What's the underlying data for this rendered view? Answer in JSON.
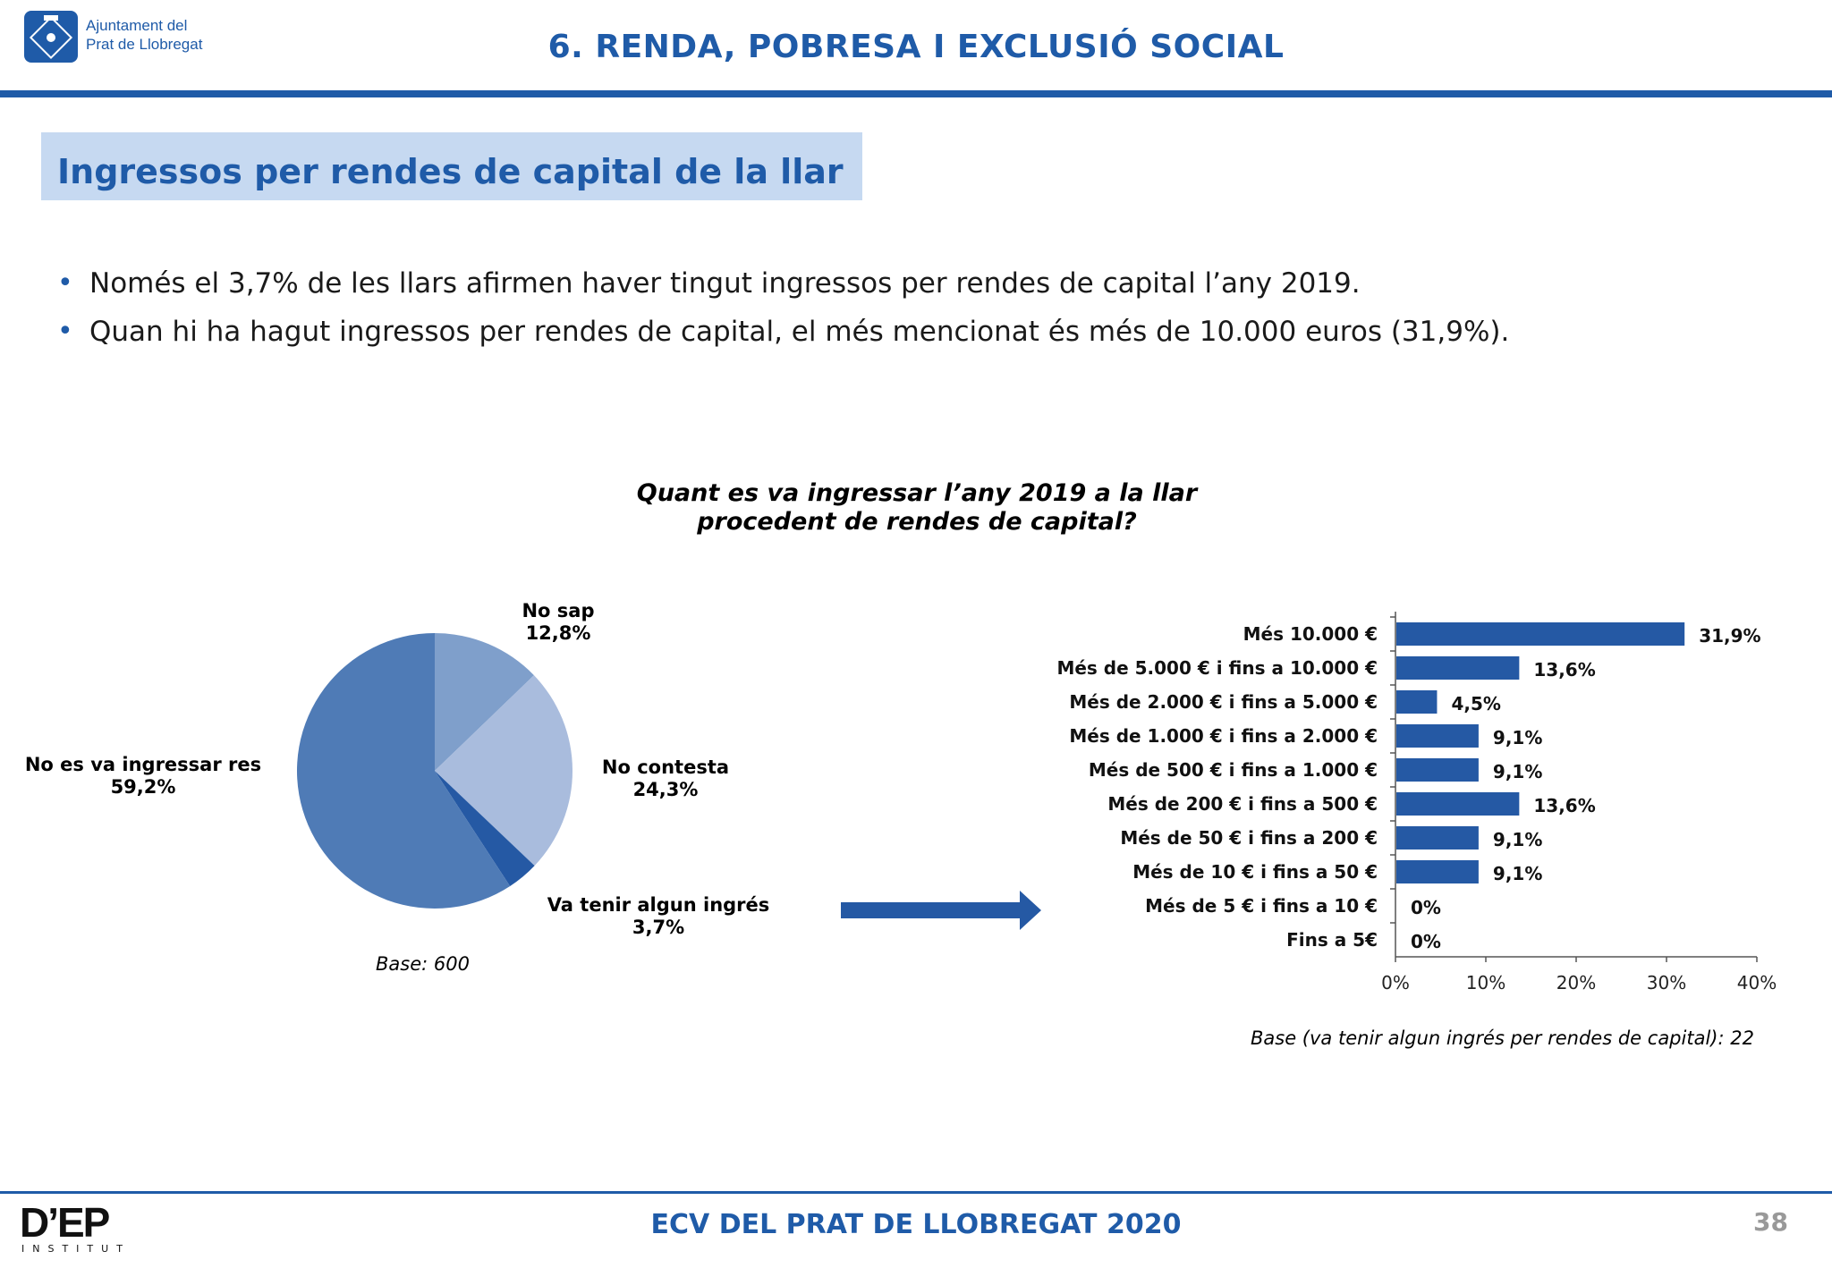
{
  "header": {
    "org_line1": "Ajuntament del",
    "org_line2": "Prat de Llobregat",
    "title": "6. RENDA, POBRESA I EXCLUSIÓ SOCIAL"
  },
  "section": {
    "title": "Ingressos per rendes de capital de la llar"
  },
  "bullets": [
    "Només el 3,7% de les llars afirmen haver tingut ingressos per rendes de capital l’any 2019.",
    "Quan hi ha hagut ingressos per rendes de capital, el més mencionat és més de 10.000 euros (31,9%)."
  ],
  "colors": {
    "brand": "#1f5ba8",
    "light_box": "#c6d9f1"
  },
  "chart_data": [
    {
      "type": "pie",
      "title": "Quant es va ingressar l’any 2019 a la llar procedent de rendes de capital?",
      "title_line1": "Quant es va ingressar l’any 2019 a la llar",
      "title_line2": "procedent de rendes de capital?",
      "slices": [
        {
          "label": "No sap",
          "value_label": "12,8%",
          "value": 12.8,
          "color": "#7f9fcb"
        },
        {
          "label": "No contesta",
          "value_label": "24,3%",
          "value": 24.3,
          "color": "#a9bcdd"
        },
        {
          "label": "Va tenir algun ingrés",
          "value_label": "3,7%",
          "value": 3.7,
          "color": "#2559a4"
        },
        {
          "label": "No es va ingressar res",
          "value_label": "59,2%",
          "value": 59.2,
          "color": "#4f7bb6"
        }
      ],
      "base_note": "Base: 600"
    },
    {
      "type": "bar",
      "orientation": "horizontal",
      "categories": [
        "Més 10.000 €",
        "Més de 5.000 € i fins a 10.000 €",
        "Més de 2.000 € i fins a 5.000 €",
        "Més de 1.000 € i fins a 2.000 €",
        "Més de 500 € i fins a 1.000 €",
        "Més de 200 € i fins a 500 €",
        "Més de 50 € i fins a 200 €",
        "Més de 10 € i fins a 50 €",
        "Més de 5 € i fins a 10 €",
        "Fins a 5€"
      ],
      "values": [
        31.9,
        13.6,
        4.5,
        9.1,
        9.1,
        13.6,
        9.1,
        9.1,
        0,
        0
      ],
      "value_labels": [
        "31,9%",
        "13,6%",
        "4,5%",
        "9,1%",
        "9,1%",
        "13,6%",
        "9,1%",
        "9,1%",
        "0%",
        "0%"
      ],
      "xlim": [
        0,
        40
      ],
      "xticks": [
        "0%",
        "10%",
        "20%",
        "30%",
        "40%"
      ],
      "bar_color": "#2559a4",
      "base_note": "Base (va tenir algun ingrés per rendes de capital): 22"
    }
  ],
  "footer": {
    "title": "ECV DEL PRAT DE LLOBREGAT 2020",
    "page": "38",
    "logo": "D’EP",
    "logo_sub": "INSTITUT"
  }
}
